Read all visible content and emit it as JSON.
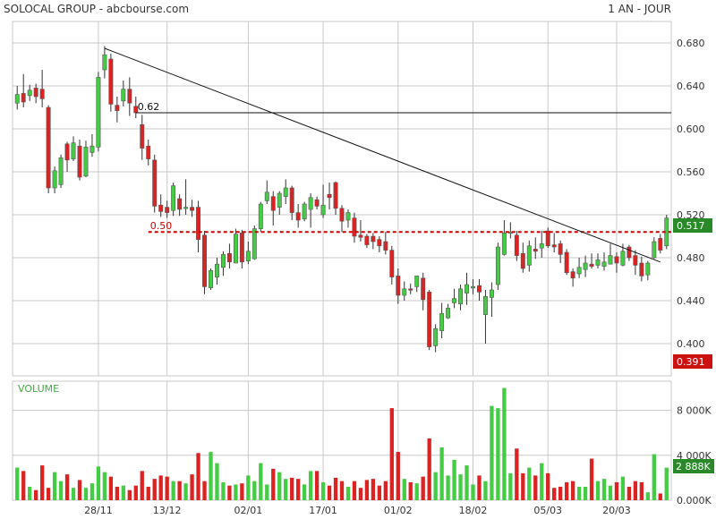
{
  "header": {
    "title": "SOLOCAL GROUP - abcbourse.com",
    "period": "1 AN - JOUR"
  },
  "colors": {
    "up": "#44cc44",
    "down": "#dd2222",
    "grid": "#c8c8c8",
    "text": "#333333",
    "volume_label": "#44aa44",
    "resistance": "#cc0000",
    "last_price_bg": "#2a8a2a",
    "min_price_bg": "#cc1111"
  },
  "chart_data": [
    {
      "type": "candlestick",
      "ylim": [
        0.37,
        0.7
      ],
      "yticks": [
        "0.680",
        "0.640",
        "0.600",
        "0.560",
        "0.520",
        "0.480",
        "0.440",
        "0.400"
      ],
      "xticks": [
        "28/11",
        "13/12",
        "02/01",
        "17/01",
        "01/02",
        "18/02",
        "05/03",
        "20/03"
      ],
      "xtick_index": [
        13,
        24,
        37,
        49,
        61,
        73,
        85,
        96
      ],
      "last_price": "0.517",
      "min_price": "0.391",
      "levels": [
        {
          "label": "0.62",
          "value": 0.615,
          "start_index": 19,
          "style": "solid"
        },
        {
          "label": "0.50",
          "value": 0.504,
          "start_index": 21,
          "style": "dashed"
        }
      ],
      "trendline": {
        "start_index": 14,
        "start_value": 0.675,
        "end_index": 103,
        "end_value": 0.476
      },
      "candles": [
        [
          0.624,
          0.632,
          0.64,
          0.618
        ],
        [
          0.633,
          0.625,
          0.651,
          0.62
        ],
        [
          0.631,
          0.636,
          0.641,
          0.626
        ],
        [
          0.638,
          0.63,
          0.642,
          0.624
        ],
        [
          0.637,
          0.628,
          0.655,
          0.62
        ],
        [
          0.62,
          0.545,
          0.622,
          0.54
        ],
        [
          0.545,
          0.561,
          0.565,
          0.54
        ],
        [
          0.548,
          0.573,
          0.576,
          0.545
        ],
        [
          0.586,
          0.571,
          0.588,
          0.56
        ],
        [
          0.572,
          0.587,
          0.593,
          0.57
        ],
        [
          0.584,
          0.555,
          0.59,
          0.552
        ],
        [
          0.556,
          0.583,
          0.589,
          0.555
        ],
        [
          0.578,
          0.584,
          0.595,
          0.574
        ],
        [
          0.583,
          0.648,
          0.653,
          0.579
        ],
        [
          0.655,
          0.669,
          0.677,
          0.647
        ],
        [
          0.665,
          0.623,
          0.67,
          0.616
        ],
        [
          0.622,
          0.617,
          0.63,
          0.606
        ],
        [
          0.626,
          0.637,
          0.645,
          0.621
        ],
        [
          0.637,
          0.624,
          0.648,
          0.612
        ],
        [
          0.621,
          0.615,
          0.63,
          0.61
        ],
        [
          0.604,
          0.582,
          0.613,
          0.571
        ],
        [
          0.584,
          0.572,
          0.59,
          0.566
        ],
        [
          0.571,
          0.528,
          0.576,
          0.522
        ],
        [
          0.529,
          0.523,
          0.539,
          0.518
        ],
        [
          0.527,
          0.522,
          0.533,
          0.517
        ],
        [
          0.524,
          0.547,
          0.55,
          0.519
        ],
        [
          0.535,
          0.525,
          0.539,
          0.519
        ],
        [
          0.527,
          0.527,
          0.553,
          0.52
        ],
        [
          0.527,
          0.524,
          0.534,
          0.518
        ],
        [
          0.527,
          0.497,
          0.533,
          0.485
        ],
        [
          0.501,
          0.453,
          0.505,
          0.446
        ],
        [
          0.452,
          0.468,
          0.47,
          0.45
        ],
        [
          0.462,
          0.474,
          0.48,
          0.455
        ],
        [
          0.471,
          0.483,
          0.486,
          0.463
        ],
        [
          0.484,
          0.476,
          0.493,
          0.47
        ],
        [
          0.475,
          0.502,
          0.507,
          0.475
        ],
        [
          0.503,
          0.476,
          0.506,
          0.47
        ],
        [
          0.477,
          0.486,
          0.495,
          0.474
        ],
        [
          0.479,
          0.507,
          0.51,
          0.478
        ],
        [
          0.507,
          0.53,
          0.532,
          0.504
        ],
        [
          0.533,
          0.541,
          0.552,
          0.53
        ],
        [
          0.537,
          0.524,
          0.542,
          0.51
        ],
        [
          0.527,
          0.54,
          0.542,
          0.52
        ],
        [
          0.537,
          0.545,
          0.553,
          0.53
        ],
        [
          0.545,
          0.522,
          0.547,
          0.515
        ],
        [
          0.522,
          0.515,
          0.53,
          0.508
        ],
        [
          0.516,
          0.53,
          0.532,
          0.514
        ],
        [
          0.525,
          0.536,
          0.54,
          0.508
        ],
        [
          0.534,
          0.528,
          0.537,
          0.525
        ],
        [
          0.52,
          0.529,
          0.548,
          0.517
        ],
        [
          0.539,
          0.536,
          0.55,
          0.525
        ],
        [
          0.55,
          0.526,
          0.551,
          0.52
        ],
        [
          0.526,
          0.514,
          0.529,
          0.504
        ],
        [
          0.515,
          0.522,
          0.525,
          0.508
        ],
        [
          0.517,
          0.5,
          0.522,
          0.494
        ],
        [
          0.501,
          0.499,
          0.515,
          0.495
        ],
        [
          0.5,
          0.492,
          0.502,
          0.489
        ],
        [
          0.5,
          0.495,
          0.503,
          0.488
        ],
        [
          0.497,
          0.491,
          0.5,
          0.485
        ],
        [
          0.495,
          0.487,
          0.504,
          0.483
        ],
        [
          0.487,
          0.462,
          0.491,
          0.455
        ],
        [
          0.463,
          0.445,
          0.47,
          0.437
        ],
        [
          0.445,
          0.451,
          0.458,
          0.44
        ],
        [
          0.451,
          0.45,
          0.456,
          0.446
        ],
        [
          0.453,
          0.463,
          0.463,
          0.448
        ],
        [
          0.461,
          0.441,
          0.466,
          0.431
        ],
        [
          0.448,
          0.397,
          0.45,
          0.394
        ],
        [
          0.398,
          0.414,
          0.418,
          0.392
        ],
        [
          0.412,
          0.428,
          0.438,
          0.405
        ],
        [
          0.424,
          0.433,
          0.437,
          0.423
        ],
        [
          0.438,
          0.442,
          0.451,
          0.433
        ],
        [
          0.437,
          0.451,
          0.455,
          0.431
        ],
        [
          0.447,
          0.455,
          0.466,
          0.436
        ],
        [
          0.452,
          0.453,
          0.46,
          0.446
        ],
        [
          0.454,
          0.448,
          0.46,
          0.44
        ],
        [
          0.427,
          0.444,
          0.45,
          0.4
        ],
        [
          0.443,
          0.45,
          0.457,
          0.425
        ],
        [
          0.455,
          0.49,
          0.494,
          0.45
        ],
        [
          0.483,
          0.503,
          0.515,
          0.482
        ],
        [
          0.503,
          0.504,
          0.513,
          0.498
        ],
        [
          0.501,
          0.482,
          0.505,
          0.477
        ],
        [
          0.484,
          0.47,
          0.494,
          0.466
        ],
        [
          0.473,
          0.491,
          0.496,
          0.467
        ],
        [
          0.488,
          0.486,
          0.499,
          0.479
        ],
        [
          0.489,
          0.493,
          0.505,
          0.48
        ],
        [
          0.505,
          0.491,
          0.508,
          0.489
        ],
        [
          0.492,
          0.49,
          0.503,
          0.485
        ],
        [
          0.493,
          0.483,
          0.496,
          0.475
        ],
        [
          0.485,
          0.466,
          0.488,
          0.464
        ],
        [
          0.467,
          0.461,
          0.47,
          0.453
        ],
        [
          0.465,
          0.471,
          0.48,
          0.461
        ],
        [
          0.469,
          0.475,
          0.482,
          0.462
        ],
        [
          0.474,
          0.472,
          0.484,
          0.47
        ],
        [
          0.473,
          0.478,
          0.484,
          0.47
        ],
        [
          0.472,
          0.476,
          0.485,
          0.468
        ],
        [
          0.474,
          0.482,
          0.493,
          0.474
        ],
        [
          0.481,
          0.475,
          0.485,
          0.466
        ],
        [
          0.473,
          0.486,
          0.493,
          0.472
        ],
        [
          0.49,
          0.48,
          0.492,
          0.477
        ],
        [
          0.482,
          0.473,
          0.487,
          0.464
        ],
        [
          0.475,
          0.463,
          0.481,
          0.458
        ],
        [
          0.464,
          0.475,
          0.477,
          0.459
        ],
        [
          0.48,
          0.495,
          0.499,
          0.479
        ],
        [
          0.498,
          0.487,
          0.502,
          0.484
        ],
        [
          0.491,
          0.517,
          0.52,
          0.488
        ]
      ]
    },
    {
      "type": "bar",
      "label": "VOLUME",
      "ylim": [
        0,
        10600
      ],
      "yticks": [
        "8 000K",
        "4 000K",
        "0.000K"
      ],
      "last_volume": "2 888K",
      "volumes": [
        2900,
        2600,
        1200,
        900,
        3100,
        1100,
        2500,
        1700,
        2300,
        1100,
        1800,
        1100,
        1500,
        3000,
        2500,
        2100,
        1200,
        1300,
        900,
        1300,
        2600,
        1200,
        1900,
        2200,
        2100,
        1700,
        1700,
        1500,
        2300,
        4200,
        1700,
        4300,
        3300,
        1600,
        1300,
        1400,
        1500,
        2200,
        1700,
        3300,
        1400,
        2800,
        2500,
        1900,
        2000,
        1900,
        1400,
        2600,
        2600,
        1600,
        1300,
        2000,
        1700,
        1200,
        1700,
        1100,
        1800,
        1900,
        1300,
        1700,
        8200,
        4300,
        1900,
        1600,
        1500,
        2100,
        5500,
        2500,
        4700,
        2200,
        3600,
        2300,
        3100,
        1400,
        2200,
        1700,
        8400,
        8200,
        10000,
        2400,
        4600,
        2400,
        2900,
        2200,
        3300,
        2400,
        1100,
        1200,
        1600,
        1700,
        1200,
        1200,
        3700,
        1700,
        1900,
        1300,
        1600,
        2100,
        1200,
        1700,
        1600,
        700,
        4100,
        600,
        2900
      ]
    }
  ]
}
